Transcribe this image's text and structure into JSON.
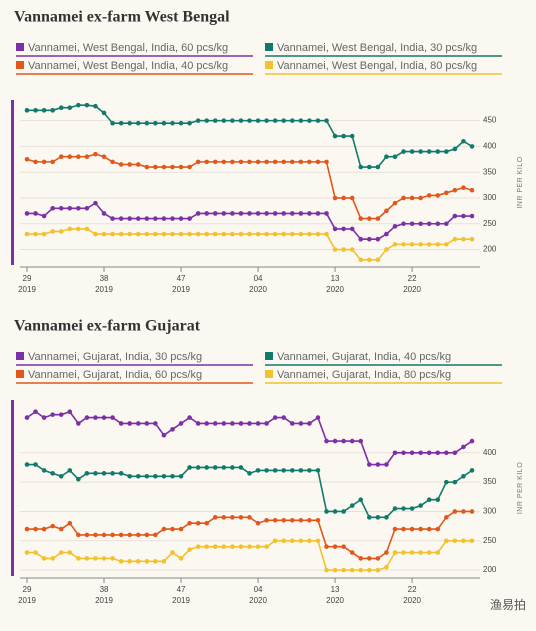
{
  "chart_data": [
    {
      "type": "line",
      "title": "Vannamei ex-farm West Bengal",
      "y_label": "INR PER KILO",
      "xlim": [
        0,
        52
      ],
      "ylim": [
        170,
        490
      ],
      "yticks": [
        200,
        250,
        300,
        350,
        400,
        450
      ],
      "grid": true,
      "xticks": [
        {
          "value": 0,
          "label": "29"
        },
        {
          "value": 9,
          "label": "38"
        },
        {
          "value": 18,
          "label": "47"
        },
        {
          "value": 27,
          "label": "04"
        },
        {
          "value": 36,
          "label": "13"
        },
        {
          "value": 45,
          "label": "22"
        }
      ],
      "xtick_years": [
        "2019",
        "2019",
        "2019",
        "2020",
        "2020",
        "2020"
      ],
      "series": [
        {
          "name": "Vannamei, West Bengal, India, 60 pcs/kg",
          "color": "#7d2fa6",
          "values": [
            270,
            270,
            265,
            280,
            280,
            280,
            280,
            280,
            290,
            270,
            260,
            260,
            260,
            260,
            260,
            260,
            260,
            260,
            260,
            260,
            270,
            270,
            270,
            270,
            270,
            270,
            270,
            270,
            270,
            270,
            270,
            270,
            270,
            270,
            270,
            270,
            240,
            240,
            240,
            220,
            220,
            220,
            230,
            245,
            250,
            250,
            250,
            250,
            250,
            250,
            265,
            265,
            265
          ]
        },
        {
          "name": "Vannamei, West Bengal, India, 30 pcs/kg",
          "color": "#107b6a",
          "values": [
            470,
            470,
            470,
            470,
            475,
            475,
            480,
            480,
            478,
            465,
            445,
            445,
            445,
            445,
            445,
            445,
            445,
            445,
            445,
            445,
            450,
            450,
            450,
            450,
            450,
            450,
            450,
            450,
            450,
            450,
            450,
            450,
            450,
            450,
            450,
            450,
            420,
            420,
            420,
            360,
            360,
            360,
            380,
            380,
            390,
            390,
            390,
            390,
            390,
            390,
            395,
            410,
            400
          ]
        },
        {
          "name": "Vannamei, West Bengal, India, 40 pcs/kg",
          "color": "#e0581c",
          "values": [
            375,
            370,
            370,
            370,
            380,
            380,
            380,
            380,
            385,
            380,
            370,
            365,
            365,
            365,
            360,
            360,
            360,
            360,
            360,
            360,
            370,
            370,
            370,
            370,
            370,
            370,
            370,
            370,
            370,
            370,
            370,
            370,
            370,
            370,
            370,
            370,
            300,
            300,
            300,
            260,
            260,
            260,
            275,
            290,
            300,
            300,
            300,
            305,
            305,
            310,
            315,
            320,
            315
          ]
        },
        {
          "name": "Vannamei, West Bengal, India, 80 pcs/kg",
          "color": "#f2c12e",
          "values": [
            230,
            230,
            230,
            235,
            235,
            240,
            240,
            240,
            230,
            230,
            230,
            230,
            230,
            230,
            230,
            230,
            230,
            230,
            230,
            230,
            230,
            230,
            230,
            230,
            230,
            230,
            230,
            230,
            230,
            230,
            230,
            230,
            230,
            230,
            230,
            230,
            200,
            200,
            200,
            180,
            180,
            180,
            200,
            210,
            210,
            210,
            210,
            210,
            210,
            210,
            220,
            220,
            220
          ]
        }
      ]
    },
    {
      "type": "line",
      "title": "Vannamei ex-farm Gujarat",
      "y_label": "INR PER KILO",
      "xlim": [
        0,
        52
      ],
      "ylim": [
        190,
        490
      ],
      "yticks": [
        200,
        250,
        300,
        350,
        400
      ],
      "grid": true,
      "xticks": [
        {
          "value": 0,
          "label": "29"
        },
        {
          "value": 9,
          "label": "38"
        },
        {
          "value": 18,
          "label": "47"
        },
        {
          "value": 27,
          "label": "04"
        },
        {
          "value": 36,
          "label": "13"
        },
        {
          "value": 45,
          "label": "22"
        }
      ],
      "xtick_years": [
        "2019",
        "2019",
        "2019",
        "2020",
        "2020",
        "2020"
      ],
      "series": [
        {
          "name": "Vannamei, Gujarat, India, 30 pcs/kg",
          "color": "#7d2fa6",
          "values": [
            460,
            470,
            460,
            465,
            465,
            470,
            450,
            460,
            460,
            460,
            460,
            450,
            450,
            450,
            450,
            450,
            430,
            440,
            450,
            460,
            450,
            450,
            450,
            450,
            450,
            450,
            450,
            450,
            450,
            460,
            460,
            450,
            450,
            450,
            460,
            420,
            420,
            420,
            420,
            420,
            380,
            380,
            380,
            400,
            400,
            400,
            400,
            400,
            400,
            400,
            400,
            410,
            420
          ]
        },
        {
          "name": "Vannamei, Gujarat, India, 40 pcs/kg",
          "color": "#107b6a",
          "values": [
            380,
            380,
            370,
            365,
            360,
            370,
            355,
            365,
            365,
            365,
            365,
            365,
            360,
            360,
            360,
            360,
            360,
            360,
            360,
            375,
            375,
            375,
            375,
            375,
            375,
            375,
            365,
            370,
            370,
            370,
            370,
            370,
            370,
            370,
            370,
            300,
            300,
            300,
            310,
            320,
            290,
            290,
            290,
            305,
            305,
            305,
            310,
            320,
            320,
            350,
            350,
            360,
            370
          ]
        },
        {
          "name": "Vannamei, Gujarat, India, 60 pcs/kg",
          "color": "#e0581c",
          "values": [
            270,
            270,
            270,
            275,
            270,
            280,
            260,
            260,
            260,
            260,
            260,
            260,
            260,
            260,
            260,
            260,
            270,
            270,
            270,
            280,
            280,
            280,
            290,
            290,
            290,
            290,
            290,
            280,
            285,
            285,
            285,
            285,
            285,
            285,
            285,
            240,
            240,
            240,
            230,
            220,
            220,
            220,
            230,
            270,
            270,
            270,
            270,
            270,
            270,
            290,
            300,
            300,
            300
          ]
        },
        {
          "name": "Vannamei, Gujarat, India, 80 pcs/kg",
          "color": "#f2c12e",
          "values": [
            230,
            230,
            220,
            220,
            230,
            230,
            220,
            220,
            220,
            220,
            220,
            215,
            215,
            215,
            215,
            215,
            215,
            230,
            220,
            235,
            240,
            240,
            240,
            240,
            240,
            240,
            240,
            240,
            240,
            250,
            250,
            250,
            250,
            250,
            250,
            200,
            200,
            200,
            200,
            200,
            200,
            200,
            205,
            230,
            230,
            230,
            230,
            230,
            230,
            250,
            250,
            250,
            250
          ]
        }
      ]
    }
  ],
  "watermark": "渔易拍"
}
